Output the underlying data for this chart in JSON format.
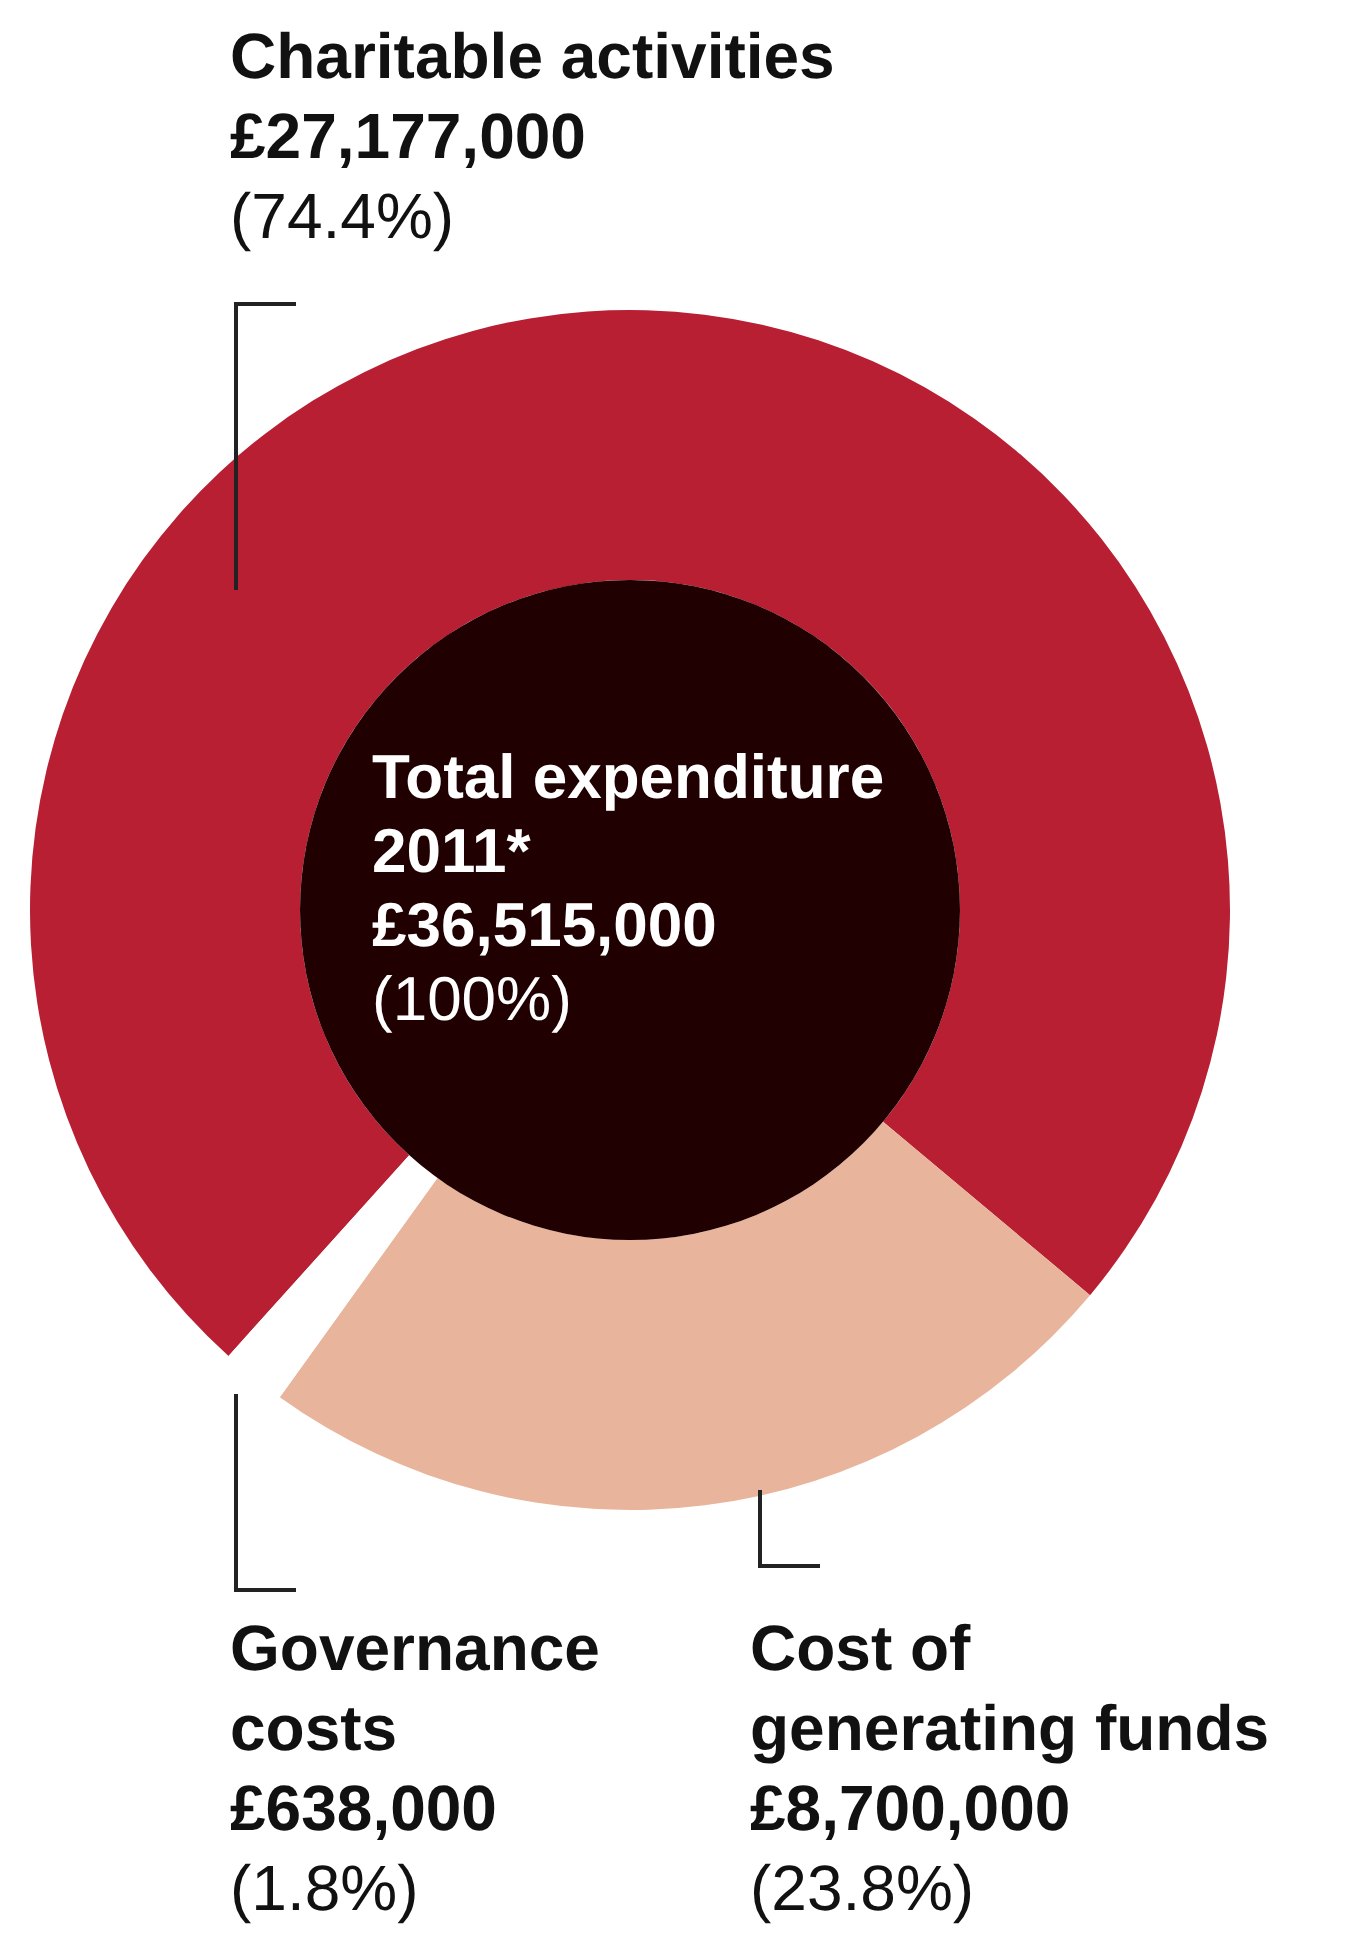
{
  "chart_data": {
    "type": "donut",
    "title": "Total expenditure 2011*",
    "annotations": [
      "£36,515,000",
      "(100%)"
    ],
    "categories": [
      "Charitable activities",
      "Cost of generating funds",
      "Governance costs"
    ],
    "values": [
      27177000,
      8700000,
      638000
    ],
    "colors": [
      "#b81f33",
      "#e8b59c",
      "#ffffff"
    ],
    "value_labels": [
      "£27,177,000\n(74.4%)",
      "£8,700,000\n(23.8%)",
      "£638,000\n(1.8%)"
    ]
  }
}
